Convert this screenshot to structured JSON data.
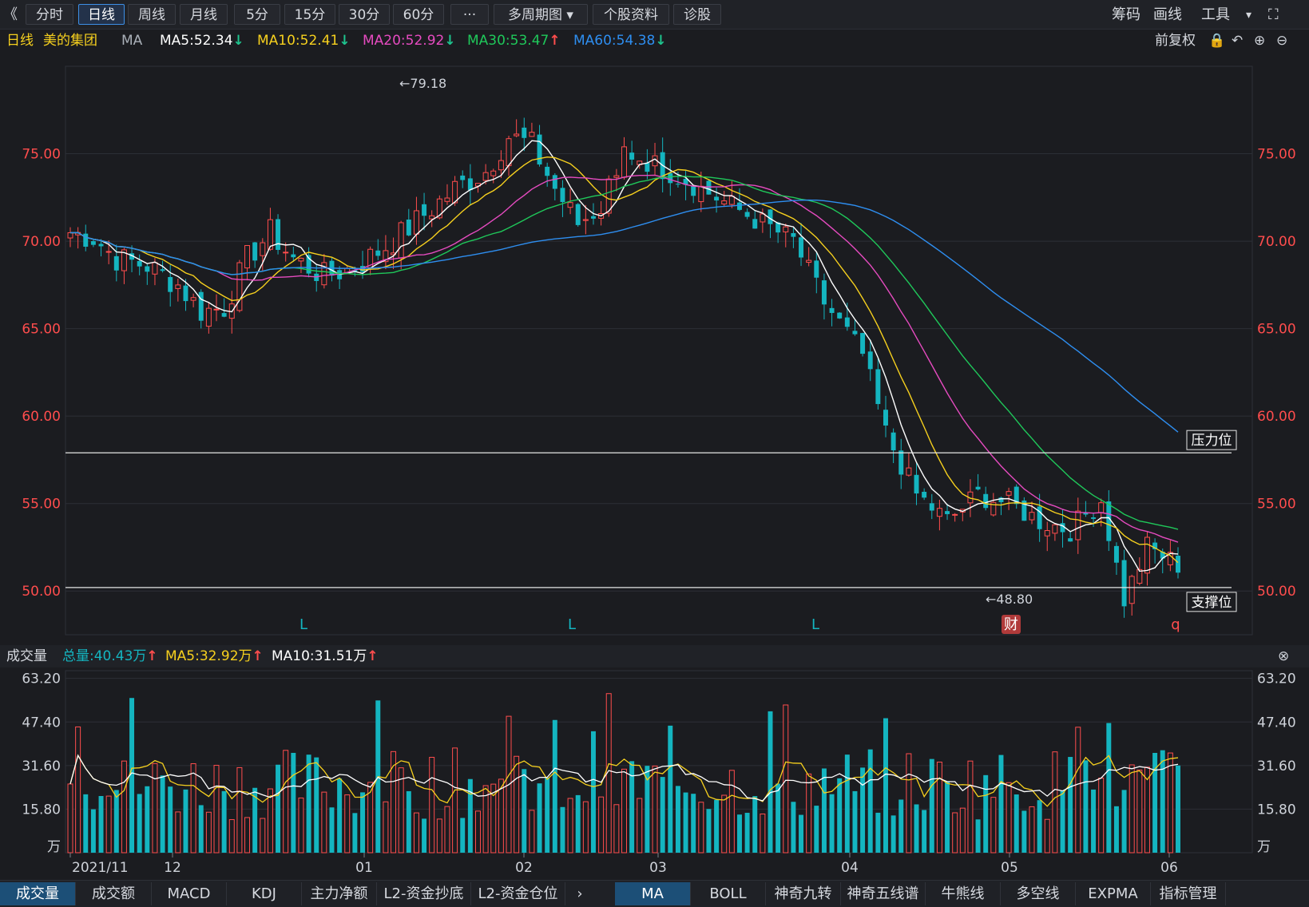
{
  "topbar": {
    "back": "《",
    "periods": [
      "分时",
      "日线",
      "周线",
      "月线",
      "5分",
      "15分",
      "30分",
      "60分",
      "···",
      "多周期图 ▾",
      "个股资料",
      "诊股"
    ],
    "active_index": 1,
    "right": [
      "筹码",
      "画线",
      "工具"
    ],
    "dropdown_icon": "▾",
    "fullscreen_icon": "⛶"
  },
  "mabar": {
    "period": "日线",
    "stock": "美的集团",
    "ma_label": "MA",
    "ma5": "MA5:52.34",
    "ma10": "MA10:52.41",
    "ma20": "MA20:52.92",
    "ma30": "MA30:53.47",
    "ma60": "MA60:54.38",
    "ma5_arrow": "↓",
    "ma10_arrow": "↓",
    "ma20_arrow": "↓",
    "ma30_arrow": "↑",
    "ma60_arrow": "↓",
    "adjust": "前复权"
  },
  "volbar": {
    "title": "成交量",
    "total": "总量:40.43万",
    "ma5": "MA5:32.92万",
    "ma10": "MA10:31.51万",
    "total_arrow": "↑",
    "ma5_arrow": "↑",
    "ma10_arrow": "↑",
    "close_icon": "⊗"
  },
  "bottom_tabs_left": [
    "成交量",
    "成交额",
    "MACD",
    "KDJ",
    "主力净额",
    "L2-资金抄底",
    "L2-资金仓位"
  ],
  "bottom_tabs_right": [
    "MA",
    "BOLL",
    "神奇九转",
    "神奇五线谱",
    "牛熊线",
    "多空线",
    "EXPMA",
    "指标管理"
  ],
  "next_icon": "›",
  "chart_data": {
    "type": "candlestick",
    "price_axis": {
      "ticks": [
        "75.00",
        "70.00",
        "65.00",
        "60.00",
        "55.00",
        "50.00"
      ],
      "range": [
        47.5,
        80.0
      ]
    },
    "volume_axis": {
      "ticks": [
        "63.20",
        "47.40",
        "31.60",
        "15.80"
      ],
      "unit": "万",
      "range": [
        0,
        66
      ]
    },
    "x_labels": [
      "2021/11",
      "12",
      "01",
      "02",
      "03",
      "04",
      "05",
      "06"
    ],
    "annotations": {
      "high": "←79.18",
      "low": "←48.80",
      "resistance": "压力位",
      "support": "支撑位",
      "markers": [
        "L",
        "L",
        "L",
        "财",
        "q"
      ]
    },
    "resistance_level": 57.9,
    "support_level": 50.2,
    "colors": {
      "up": "#ff4d4d",
      "down": "#14b5c0",
      "ma5": "#ffffff",
      "ma10": "#f6d01e",
      "ma20": "#e64bc0",
      "ma30": "#1fc85a",
      "ma60": "#2e8ef0"
    }
  }
}
